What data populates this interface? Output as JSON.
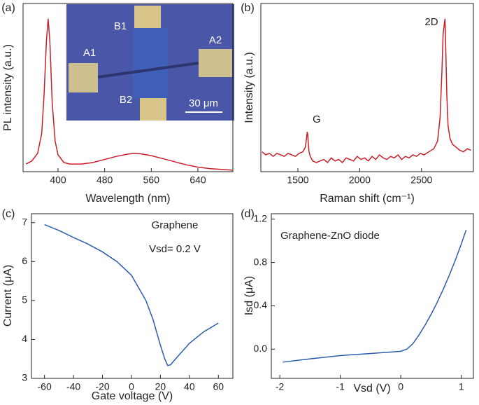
{
  "chart_data": [
    {
      "type": "line",
      "panel_label": "(a)",
      "xlabel": "Wavelength (nm)",
      "ylabel": "PL intensity (a.u.)",
      "x": [
        345,
        355,
        365,
        372,
        376,
        380,
        383,
        386,
        390,
        395,
        400,
        410,
        420,
        440,
        460,
        480,
        500,
        520,
        530,
        540,
        560,
        580,
        600,
        620,
        640,
        660,
        680,
        700
      ],
      "values": [
        0.05,
        0.07,
        0.12,
        0.25,
        0.5,
        0.85,
        1.0,
        0.85,
        0.45,
        0.2,
        0.11,
        0.06,
        0.05,
        0.05,
        0.06,
        0.08,
        0.1,
        0.115,
        0.12,
        0.118,
        0.105,
        0.085,
        0.065,
        0.045,
        0.03,
        0.02,
        0.015,
        0.01
      ],
      "color": "#c8202a",
      "xlim": [
        340,
        700
      ],
      "ylim": [
        0,
        1.1
      ],
      "xticks": [
        400,
        480,
        560,
        640
      ],
      "annotations": [
        "A1",
        "B1",
        "A2",
        "B2",
        "30 μm"
      ]
    },
    {
      "type": "line",
      "panel_label": "(b)",
      "xlabel": "Raman shift (cm⁻¹)",
      "ylabel": "Intensity (a.u.)",
      "x": [
        1210,
        1240,
        1270,
        1300,
        1330,
        1360,
        1390,
        1420,
        1450,
        1480,
        1510,
        1540,
        1560,
        1570,
        1575,
        1580,
        1585,
        1590,
        1600,
        1620,
        1650,
        1680,
        1710,
        1740,
        1770,
        1800,
        1830,
        1860,
        1890,
        1920,
        1950,
        1980,
        2010,
        2040,
        2070,
        2100,
        2130,
        2160,
        2190,
        2220,
        2250,
        2280,
        2310,
        2340,
        2370,
        2400,
        2430,
        2460,
        2490,
        2520,
        2560,
        2600,
        2630,
        2650,
        2665,
        2675,
        2685,
        2690,
        2695,
        2705,
        2715,
        2730,
        2750,
        2780,
        2810,
        2840,
        2870,
        2900
      ],
      "values": [
        0.13,
        0.11,
        0.12,
        0.1,
        0.12,
        0.11,
        0.1,
        0.12,
        0.11,
        0.1,
        0.12,
        0.13,
        0.16,
        0.22,
        0.26,
        0.24,
        0.18,
        0.13,
        0.1,
        0.07,
        0.06,
        0.07,
        0.08,
        0.06,
        0.09,
        0.07,
        0.08,
        0.06,
        0.09,
        0.08,
        0.07,
        0.1,
        0.08,
        0.09,
        0.07,
        0.1,
        0.08,
        0.11,
        0.09,
        0.08,
        0.1,
        0.09,
        0.11,
        0.08,
        0.1,
        0.09,
        0.11,
        0.1,
        0.12,
        0.11,
        0.13,
        0.15,
        0.2,
        0.35,
        0.65,
        0.9,
        0.97,
        1.0,
        0.85,
        0.5,
        0.3,
        0.22,
        0.18,
        0.16,
        0.14,
        0.13,
        0.15,
        0.14
      ],
      "color": "#c8202a",
      "xlim": [
        1200,
        2920
      ],
      "ylim": [
        0,
        1.1
      ],
      "xticks": [
        1500,
        2000,
        2500
      ],
      "annotations": [
        "G",
        "2D"
      ]
    },
    {
      "type": "line",
      "panel_label": "(c)",
      "xlabel": "Gate voltage (V)",
      "ylabel": "Current (μA)",
      "x": [
        -60,
        -50,
        -40,
        -30,
        -20,
        -10,
        0,
        10,
        15,
        20,
        23,
        25,
        27,
        30,
        40,
        50,
        60
      ],
      "values": [
        6.95,
        6.8,
        6.62,
        6.45,
        6.25,
        6.0,
        5.65,
        5.0,
        4.5,
        3.85,
        3.5,
        3.33,
        3.35,
        3.48,
        3.9,
        4.2,
        4.42
      ],
      "color": "#2a5caa",
      "xlim": [
        -69,
        70
      ],
      "ylim": [
        3,
        7.23
      ],
      "xticks": [
        -60,
        -40,
        -20,
        0,
        20,
        40,
        60
      ],
      "yticks": [
        3,
        4,
        5,
        6,
        7
      ],
      "annotations": [
        "Graphene",
        "Vsd= 0.2 V"
      ]
    },
    {
      "type": "line",
      "panel_label": "(d)",
      "xlabel": "Vsd (V)",
      "ylabel": "Isd (μA)",
      "x": [
        -1.95,
        -1.5,
        -1,
        -0.5,
        0,
        0.1,
        0.2,
        0.3,
        0.4,
        0.5,
        0.6,
        0.7,
        0.8,
        0.9,
        1.0,
        1.08
      ],
      "values": [
        -0.12,
        -0.09,
        -0.06,
        -0.04,
        -0.02,
        0.0,
        0.05,
        0.13,
        0.22,
        0.32,
        0.43,
        0.55,
        0.68,
        0.82,
        0.97,
        1.1
      ],
      "color": "#2a5caa",
      "xlim": [
        -2.14,
        1.2
      ],
      "ylim": [
        -0.27,
        1.25
      ],
      "xticks": [
        -2,
        -1,
        0,
        1
      ],
      "yticks": [
        {
          "value": 0,
          "label": "0.0"
        },
        0.4,
        0.8,
        1.2
      ],
      "annotations": [
        "Graphene-ZnO diode"
      ]
    }
  ]
}
